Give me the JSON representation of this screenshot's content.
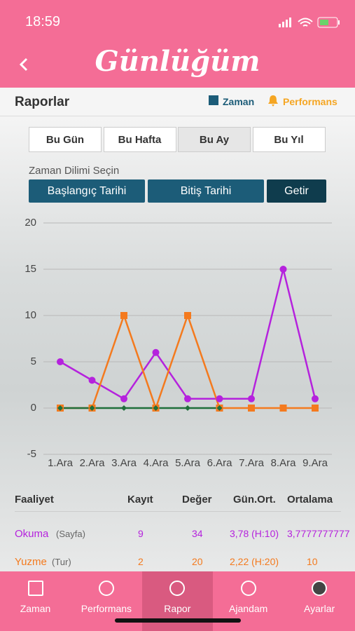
{
  "status_bar": {
    "time": "18:59"
  },
  "header": {
    "title": "Günlüğüm"
  },
  "subbar": {
    "title": "Raporlar",
    "links": [
      "Zaman",
      "Performans"
    ]
  },
  "tabs": {
    "items": [
      "Bu Gün",
      "Bu Hafta",
      "Bu Ay",
      "Bu Yıl"
    ],
    "selected": 2
  },
  "range": {
    "label": "Zaman Dilimi Seçin",
    "buttons": [
      "Başlangıç Tarihi",
      "Bitiş Tarihi",
      "Getir"
    ]
  },
  "chart_data": {
    "type": "line",
    "categories": [
      "1.Ara",
      "2.Ara",
      "3.Ara",
      "4.Ara",
      "5.Ara",
      "6.Ara",
      "7.Ara",
      "8.Ara",
      "9.Ara"
    ],
    "series": [
      {
        "color": "#b522dd",
        "marker": "circle",
        "values": [
          5,
          3,
          1,
          6,
          1,
          1,
          1,
          15,
          1
        ]
      },
      {
        "color": "#f47a1e",
        "marker": "square",
        "values": [
          0,
          0,
          10,
          0,
          10,
          0,
          0,
          0,
          0
        ]
      },
      {
        "color": "#1f6f3a",
        "marker": "diamond",
        "values": [
          0,
          0,
          0,
          0,
          0,
          0,
          null,
          null,
          null
        ]
      }
    ],
    "ylim": [
      -5,
      20
    ],
    "yticks": [
      -5,
      0,
      5,
      10,
      15,
      20
    ],
    "grid": true
  },
  "table": {
    "headers": [
      "Faaliyet",
      "Kayıt",
      "Değer",
      "Gün.Ort.",
      "Ortalama"
    ],
    "rows": [
      {
        "name": "Okuma",
        "unit": "(Sayfa)",
        "count": 9,
        "value": 34,
        "daily": "3,78 (H:10)",
        "average": "3,7777777777"
      },
      {
        "name": "Yuzme",
        "unit": "(Tur)",
        "count": 2,
        "value": 20,
        "daily": "2,22 (H:20)",
        "average": 10
      }
    ]
  },
  "nav": {
    "items": [
      "Zaman",
      "Performans",
      "Rapor",
      "Ajandam",
      "Ayarlar"
    ],
    "selected": 2
  }
}
